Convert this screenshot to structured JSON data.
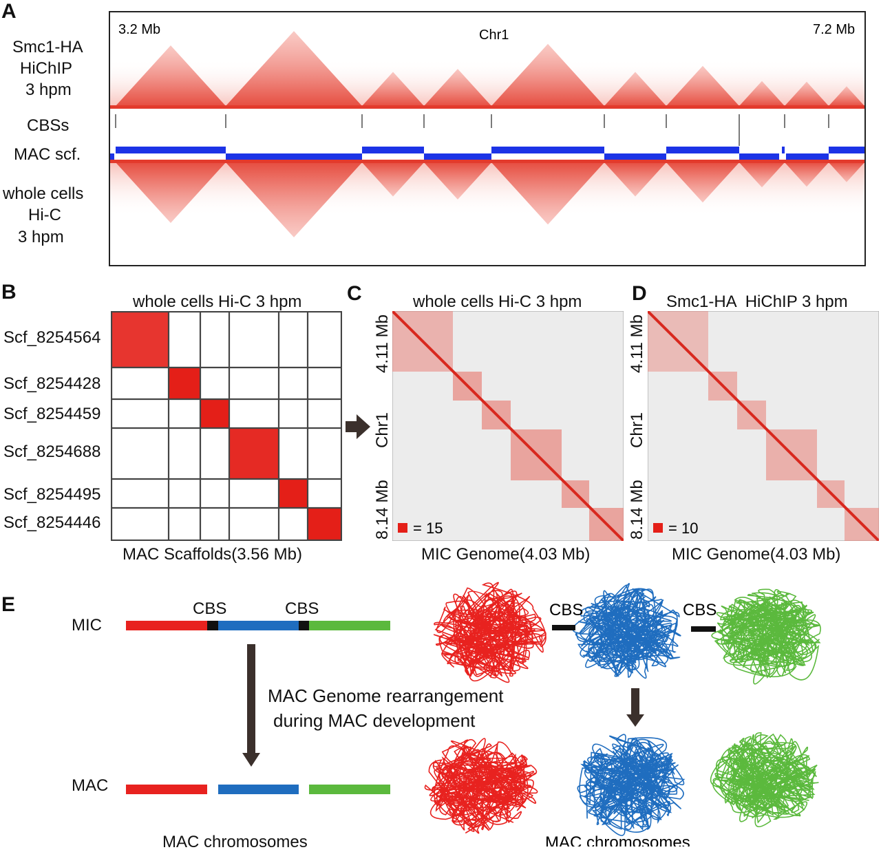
{
  "figure": {
    "panel_labels": [
      "A",
      "B",
      "C",
      "D",
      "E"
    ],
    "panelA": {
      "range_start": "3.2 Mb",
      "range_end": "7.2 Mb",
      "chrom_label": "Chr1",
      "track_hichip": [
        "Smc1-HA",
        "HiChIP",
        "3 hpm"
      ],
      "track_cbs": "CBSs",
      "track_scaffold": "MAC scf.",
      "track_hic": [
        "whole cells",
        "Hi-C",
        "3 hpm"
      ]
    },
    "panelB": {
      "title": "whole cells Hi-C 3 hpm",
      "scaffolds": [
        "Scf_8254564",
        "Scf_8254428",
        "Scf_8254459",
        "Scf_8254688",
        "Scf_8254495",
        "Scf_8254446"
      ],
      "xlabel": "MAC Scaffolds(3.56 Mb)"
    },
    "panelC": {
      "title": "whole cells Hi-C 3 hpm",
      "y_top": "4.11 Mb",
      "y_mid": "Chr1",
      "y_bottom": "8.14 Mb",
      "legend": "= 15",
      "xlabel": "MIC Genome(4.03 Mb)"
    },
    "panelD": {
      "title": "Smc1-HA  HiChIP 3 hpm",
      "y_top": "4.11 Mb",
      "y_mid": "Chr1",
      "y_bottom": "8.14 Mb",
      "legend": "= 10",
      "xlabel": "MIC Genome(4.03 Mb)"
    },
    "panelE": {
      "mic_label": "MIC",
      "mac_label": "MAC",
      "cbs_label": "CBS",
      "process_text": [
        "MAC Genome rearrangement",
        "during MAC development"
      ],
      "mac_chromosomes_left": "MAC chromosomes",
      "mac_chromosomes_right": "MAC chromosomes"
    },
    "colors": {
      "red": "#e8221f",
      "blue": "#1f6dbf",
      "green": "#5bb93d",
      "scaffold_blue": "#1c33e6",
      "heat": "#e02b20",
      "dark_arrow": "#3b302c"
    }
  }
}
